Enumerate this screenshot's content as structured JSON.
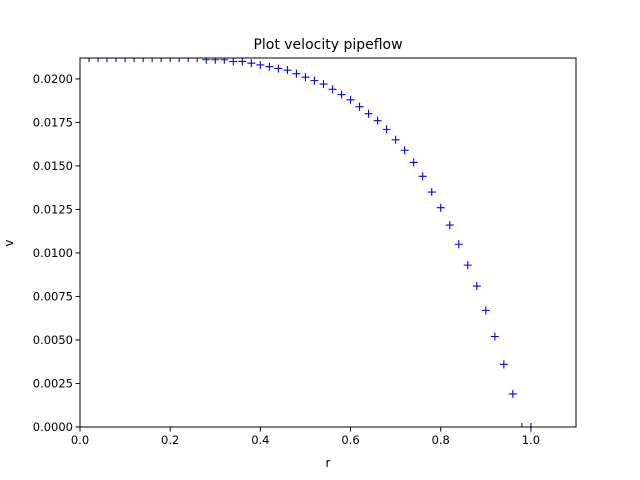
{
  "chart_data": {
    "type": "scatter",
    "title": "Plot velocity pipeflow",
    "xlabel": "r",
    "ylabel": "v",
    "xlim": [
      0.0,
      1.1
    ],
    "ylim": [
      0.0,
      0.0212
    ],
    "xticks": [
      0.0,
      0.2,
      0.4,
      0.6,
      0.8,
      1.0
    ],
    "xtick_labels": [
      "0.0",
      "0.2",
      "0.4",
      "0.6",
      "0.8",
      "1.0"
    ],
    "yticks": [
      0.0,
      0.0025,
      0.005,
      0.0075,
      0.01,
      0.0125,
      0.015,
      0.0175,
      0.02
    ],
    "ytick_labels": [
      "0.0000",
      "0.0025",
      "0.0050",
      "0.0075",
      "0.0100",
      "0.0125",
      "0.0150",
      "0.0175",
      "0.0200"
    ],
    "grid": false,
    "marker": "+",
    "color": "#0000ff",
    "x": [
      0.0,
      0.02,
      0.04,
      0.06,
      0.08,
      0.1,
      0.12,
      0.14,
      0.16,
      0.18,
      0.2,
      0.22,
      0.24,
      0.26,
      0.28,
      0.3,
      0.32,
      0.34,
      0.36,
      0.38,
      0.4,
      0.42,
      0.44,
      0.46,
      0.48,
      0.5,
      0.52,
      0.54,
      0.56,
      0.58,
      0.6,
      0.62,
      0.64,
      0.66,
      0.68,
      0.7,
      0.72,
      0.74,
      0.76,
      0.78,
      0.8,
      0.82,
      0.84,
      0.86,
      0.88,
      0.9,
      0.92,
      0.94,
      0.96,
      0.98,
      1.0
    ],
    "y": [
      0.0212,
      0.0212,
      0.0212,
      0.0212,
      0.0212,
      0.0212,
      0.0212,
      0.0212,
      0.0212,
      0.0212,
      0.0212,
      0.0212,
      0.0212,
      0.0212,
      0.0211,
      0.0211,
      0.0211,
      0.021,
      0.021,
      0.0209,
      0.0208,
      0.0207,
      0.0206,
      0.0205,
      0.0203,
      0.0201,
      0.0199,
      0.0197,
      0.0194,
      0.0191,
      0.0188,
      0.0184,
      0.018,
      0.0176,
      0.0171,
      0.0165,
      0.0159,
      0.0152,
      0.0144,
      0.0135,
      0.0126,
      0.0116,
      0.0105,
      0.0093,
      0.0081,
      0.0067,
      0.0052,
      0.0036,
      0.0019,
      0.0,
      0.0
    ]
  }
}
